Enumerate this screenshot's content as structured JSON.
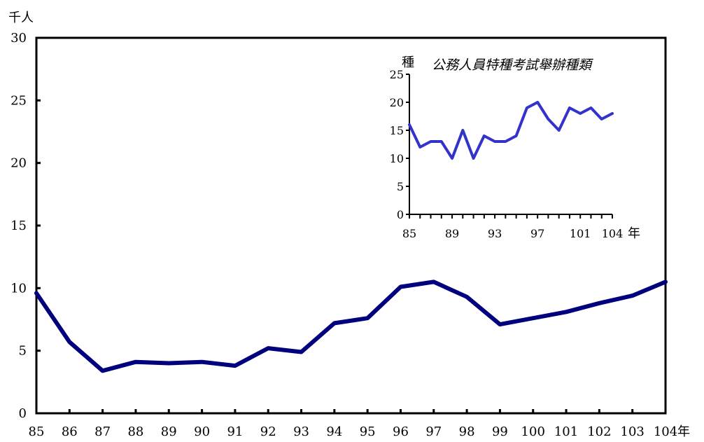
{
  "chart_data": [
    {
      "type": "line",
      "title": "",
      "ylabel": "千人",
      "xlabel": "年",
      "categories": [
        "85",
        "86",
        "87",
        "88",
        "89",
        "90",
        "91",
        "92",
        "93",
        "94",
        "95",
        "96",
        "97",
        "98",
        "99",
        "100",
        "101",
        "102",
        "103",
        "104"
      ],
      "series": [
        {
          "values": [
            9.6,
            5.7,
            3.4,
            4.1,
            4.0,
            4.1,
            3.8,
            5.2,
            4.9,
            7.2,
            7.6,
            10.1,
            10.5,
            9.3,
            7.1,
            7.6,
            8.1,
            8.8,
            9.4,
            10.5
          ]
        }
      ],
      "ylim": [
        0,
        30
      ],
      "yticks": [
        0,
        5,
        10,
        15,
        20,
        25,
        30
      ],
      "grid": false,
      "colors": {
        "line": "#00007e",
        "axis": "#000000"
      }
    },
    {
      "type": "line",
      "title": "公務人員特種考試舉辦種類",
      "ylabel": "種",
      "xlabel": "年",
      "x": [
        85,
        86,
        87,
        88,
        89,
        90,
        91,
        92,
        93,
        94,
        95,
        96,
        97,
        98,
        99,
        100,
        101,
        102,
        103,
        104
      ],
      "xtick_labels": [
        "85",
        "89",
        "93",
        "97",
        "101",
        "104"
      ],
      "series": [
        {
          "values": [
            16,
            12,
            13,
            13,
            10,
            15,
            10,
            14,
            13,
            13,
            14,
            19,
            20,
            17,
            15,
            19,
            18,
            19,
            17,
            18
          ]
        }
      ],
      "ylim": [
        0,
        25
      ],
      "yticks": [
        0,
        5,
        10,
        15,
        20,
        25
      ],
      "grid": false,
      "colors": {
        "line": "#3333cc",
        "axis": "#000000"
      }
    }
  ]
}
